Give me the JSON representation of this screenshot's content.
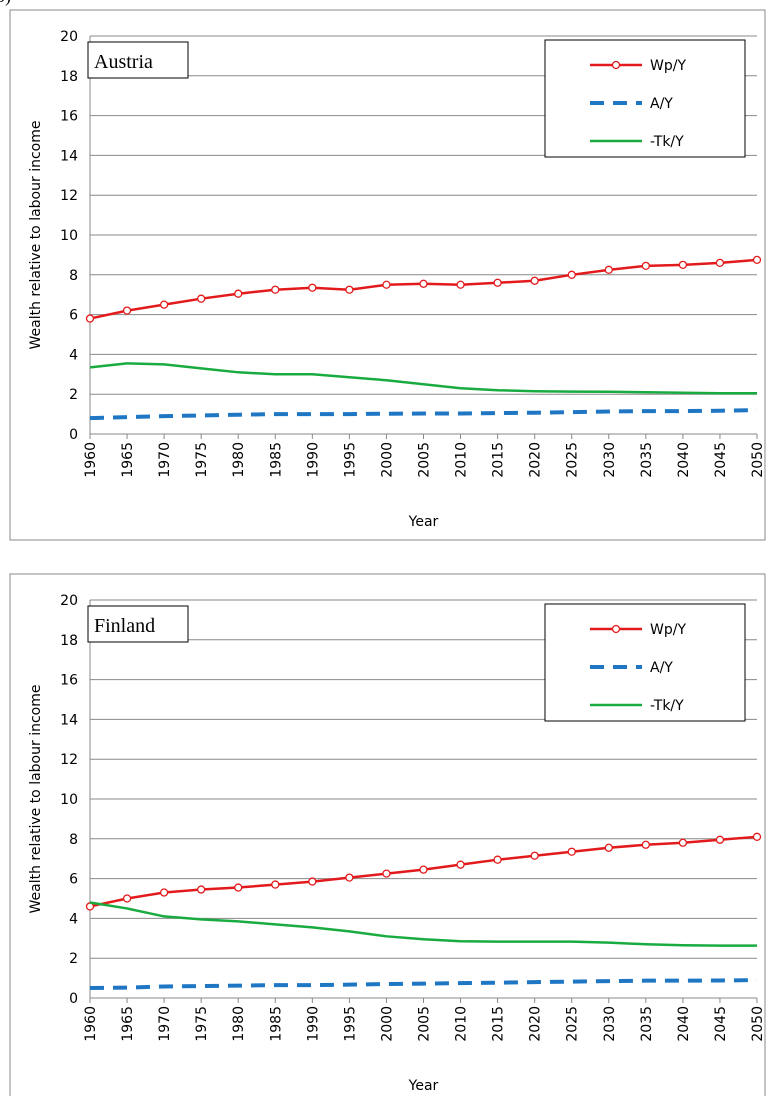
{
  "panel_label": "b)",
  "chart_data": [
    {
      "type": "line",
      "title": "Austria",
      "y_label": "Wealth relative to labour income",
      "x_label": "Year",
      "x": [
        1960,
        1965,
        1970,
        1975,
        1980,
        1985,
        1990,
        1995,
        2000,
        2005,
        2010,
        2015,
        2020,
        2025,
        2030,
        2035,
        2040,
        2045,
        2050
      ],
      "xlim": [
        1960,
        2050
      ],
      "xticks": [
        1960,
        1965,
        1970,
        1975,
        1980,
        1985,
        1990,
        1995,
        2000,
        2005,
        2010,
        2015,
        2020,
        2025,
        2030,
        2035,
        2040,
        2045,
        2050
      ],
      "ylim": [
        0,
        20
      ],
      "yticks": [
        0,
        2,
        4,
        6,
        8,
        10,
        12,
        14,
        16,
        18,
        20
      ],
      "grid": true,
      "legend": "upper right",
      "series": [
        {
          "name": "Wp/Y",
          "color": "#e31a1c",
          "style": "solid",
          "marker": "circle",
          "values": [
            5.8,
            6.2,
            6.5,
            6.8,
            7.05,
            7.25,
            7.35,
            7.25,
            7.5,
            7.55,
            7.5,
            7.6,
            7.7,
            8.0,
            8.25,
            8.45,
            8.5,
            8.6,
            8.75
          ]
        },
        {
          "name": "A/Y",
          "color": "#1f77c4",
          "style": "dashed",
          "marker": "none",
          "values": [
            0.8,
            0.85,
            0.9,
            0.93,
            0.97,
            1.0,
            1.0,
            1.0,
            1.02,
            1.03,
            1.03,
            1.05,
            1.07,
            1.1,
            1.13,
            1.15,
            1.15,
            1.17,
            1.2
          ]
        },
        {
          "name": "-Tk/Y",
          "color": "#1aab40",
          "style": "solid",
          "marker": "none",
          "values": [
            3.35,
            3.55,
            3.5,
            3.3,
            3.1,
            3.0,
            3.0,
            2.85,
            2.7,
            2.5,
            2.3,
            2.2,
            2.15,
            2.13,
            2.12,
            2.1,
            2.07,
            2.05,
            2.05
          ]
        }
      ]
    },
    {
      "type": "line",
      "title": "Finland",
      "y_label": "Wealth relative to labour income",
      "x_label": "Year",
      "x": [
        1960,
        1965,
        1970,
        1975,
        1980,
        1985,
        1990,
        1995,
        2000,
        2005,
        2010,
        2015,
        2020,
        2025,
        2030,
        2035,
        2040,
        2045,
        2050
      ],
      "xlim": [
        1960,
        2050
      ],
      "xticks": [
        1960,
        1965,
        1970,
        1975,
        1980,
        1985,
        1990,
        1995,
        2000,
        2005,
        2010,
        2015,
        2020,
        2025,
        2030,
        2035,
        2040,
        2045,
        2050
      ],
      "ylim": [
        0,
        20
      ],
      "yticks": [
        0,
        2,
        4,
        6,
        8,
        10,
        12,
        14,
        16,
        18,
        20
      ],
      "grid": true,
      "legend": "upper right",
      "series": [
        {
          "name": "Wp/Y",
          "color": "#e31a1c",
          "style": "solid",
          "marker": "circle",
          "values": [
            4.6,
            5.0,
            5.3,
            5.45,
            5.55,
            5.7,
            5.85,
            6.05,
            6.25,
            6.45,
            6.7,
            6.95,
            7.15,
            7.35,
            7.55,
            7.7,
            7.8,
            7.95,
            8.1
          ]
        },
        {
          "name": "A/Y",
          "color": "#1f77c4",
          "style": "dashed",
          "marker": "none",
          "values": [
            0.5,
            0.52,
            0.58,
            0.6,
            0.62,
            0.65,
            0.65,
            0.67,
            0.7,
            0.72,
            0.75,
            0.77,
            0.8,
            0.82,
            0.85,
            0.87,
            0.87,
            0.88,
            0.9
          ]
        },
        {
          "name": "-Tk/Y",
          "color": "#1aab40",
          "style": "solid",
          "marker": "none",
          "values": [
            4.8,
            4.5,
            4.1,
            3.95,
            3.85,
            3.7,
            3.55,
            3.35,
            3.1,
            2.95,
            2.85,
            2.83,
            2.83,
            2.83,
            2.78,
            2.7,
            2.65,
            2.63,
            2.63
          ]
        }
      ]
    }
  ]
}
